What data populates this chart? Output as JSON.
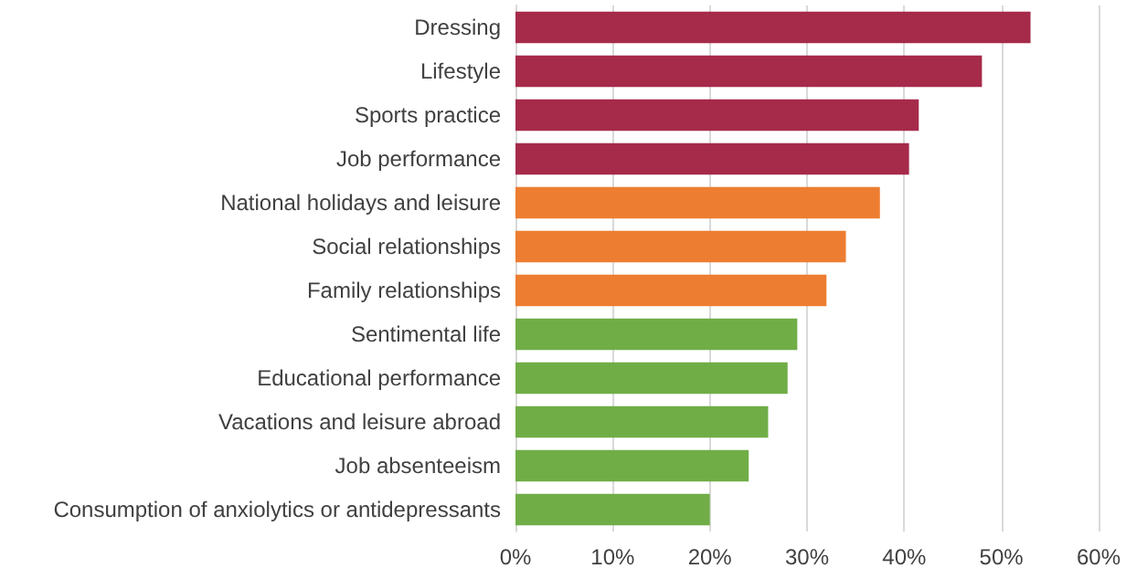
{
  "chart_data": {
    "type": "bar",
    "orientation": "horizontal",
    "categories": [
      "Dressing",
      "Lifestyle",
      "Sports practice",
      "Job performance",
      "National holidays and leisure",
      "Social relationships",
      "Family relationships",
      "Sentimental life",
      "Educational performance",
      "Vacations and leisure abroad",
      "Job absenteeism",
      "Consumption of anxiolytics or antidepressants"
    ],
    "values": [
      53,
      48,
      41.5,
      40.5,
      37.5,
      34,
      32,
      29,
      28,
      26,
      24,
      20
    ],
    "colors": [
      "#a62a4a",
      "#a62a4a",
      "#a62a4a",
      "#a62a4a",
      "#ed7d31",
      "#ed7d31",
      "#ed7d31",
      "#70ad47",
      "#70ad47",
      "#70ad47",
      "#70ad47",
      "#70ad47"
    ],
    "xlim": [
      0,
      60
    ],
    "xticks": [
      {
        "value": 0,
        "label": "0%"
      },
      {
        "value": 10,
        "label": "10%"
      },
      {
        "value": 20,
        "label": "20%"
      },
      {
        "value": 30,
        "label": "30%"
      },
      {
        "value": 40,
        "label": "40%"
      },
      {
        "value": 50,
        "label": "50%"
      },
      {
        "value": 60,
        "label": "60%"
      }
    ],
    "grid": "x"
  }
}
